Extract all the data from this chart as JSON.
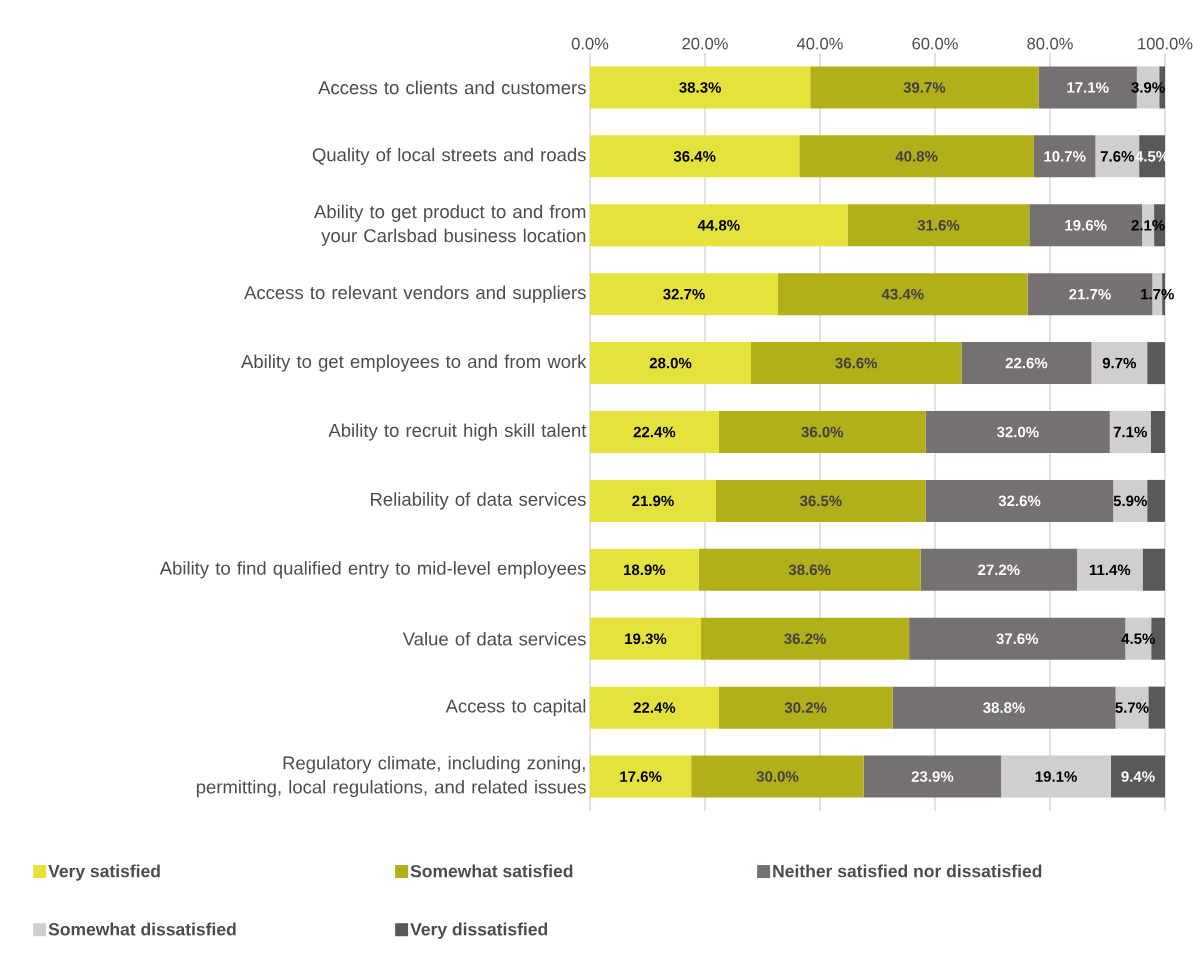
{
  "chart_data": {
    "type": "bar",
    "orientation": "horizontal",
    "stacked": true,
    "categories": [
      "Access to clients and customers",
      "Quality of local streets and roads",
      "Ability to get product to and from your Carlsbad business location",
      "Access to relevant vendors and suppliers",
      "Ability to get employees to and from work",
      "Ability to recruit high skill talent",
      "Reliability of data services",
      "Ability to find qualified entry to mid-level employees",
      "Value of data services",
      "Access to capital",
      "Regulatory climate, including zoning, permitting, local regulations, and related issues"
    ],
    "series": [
      {
        "name": "Very satisfied",
        "color": "#e6e23c",
        "values": [
          38.3,
          36.4,
          44.8,
          32.7,
          28.0,
          22.4,
          21.9,
          18.9,
          19.3,
          22.4,
          17.6
        ],
        "value_labels": [
          "38.3%",
          "36.4%",
          "44.8%",
          "32.7%",
          "28.0%",
          "22.4%",
          "21.9%",
          "18.9%",
          "19.3%",
          "22.4%",
          "17.6%"
        ]
      },
      {
        "name": "Somewhat satisfied",
        "color": "#b1b01a",
        "values": [
          39.7,
          40.8,
          31.6,
          43.4,
          36.6,
          36.0,
          36.5,
          38.6,
          36.2,
          30.2,
          30.0
        ],
        "value_labels": [
          "39.7%",
          "40.8%",
          "31.6%",
          "43.4%",
          "36.6%",
          "36.0%",
          "36.5%",
          "38.6%",
          "36.2%",
          "30.2%",
          "30.0%"
        ]
      },
      {
        "name": "Neither satisfied nor dissatisfied",
        "color": "#767171",
        "values": [
          17.1,
          10.7,
          19.6,
          21.7,
          22.6,
          32.0,
          32.6,
          27.2,
          37.6,
          38.8,
          23.9
        ],
        "value_labels": [
          "17.1%",
          "10.7%",
          "19.6%",
          "21.7%",
          "22.6%",
          "32.0%",
          "32.6%",
          "27.2%",
          "37.6%",
          "38.8%",
          "23.9%"
        ]
      },
      {
        "name": "Somewhat dissatisfied",
        "color": "#d0cece",
        "values": [
          3.9,
          7.6,
          2.1,
          1.7,
          9.7,
          7.1,
          5.9,
          11.4,
          4.5,
          5.7,
          19.1
        ],
        "value_labels": [
          "3.9%",
          "7.6%",
          "2.1%",
          "1.7%",
          "9.7%",
          "7.1%",
          "5.9%",
          "11.4%",
          "4.5%",
          "5.7%",
          "19.1%"
        ]
      },
      {
        "name": "Very dissatisfied",
        "color": "#595959",
        "values": [
          1.0,
          4.5,
          1.9,
          0.5,
          3.1,
          2.5,
          3.1,
          3.9,
          2.4,
          2.9,
          9.4
        ],
        "value_labels": [
          null,
          "4.5%",
          null,
          null,
          null,
          null,
          null,
          null,
          null,
          null,
          "9.4%"
        ]
      }
    ],
    "xlim": [
      0,
      100
    ],
    "xticks": [
      {
        "value": 0,
        "label": "0.0%"
      },
      {
        "value": 20,
        "label": "20.0%"
      },
      {
        "value": 40,
        "label": "40.0%"
      },
      {
        "value": 60,
        "label": "60.0%"
      },
      {
        "value": 80,
        "label": "80.0%"
      },
      {
        "value": 100,
        "label": "100.0%"
      }
    ],
    "grid": "x",
    "legend": "bottom"
  }
}
